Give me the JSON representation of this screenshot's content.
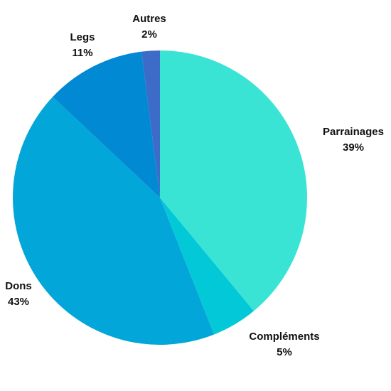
{
  "chart_data": {
    "type": "pie",
    "title": "",
    "slices": [
      {
        "name": "Parrainages",
        "value": 39,
        "value_label": "39%",
        "color": "#3ae4d4"
      },
      {
        "name": "Compléments",
        "value": 5,
        "value_label": "5%",
        "color": "#03c8d8"
      },
      {
        "name": "Dons",
        "value": 43,
        "value_label": "43%",
        "color": "#03a6d8"
      },
      {
        "name": "Legs",
        "value": 11,
        "value_label": "11%",
        "color": "#0289d4"
      },
      {
        "name": "Autres",
        "value": 2,
        "value_label": "2%",
        "color": "#3d6bc8"
      }
    ],
    "start_angle": "12 o'clock",
    "direction": "clockwise",
    "legend": "none"
  }
}
